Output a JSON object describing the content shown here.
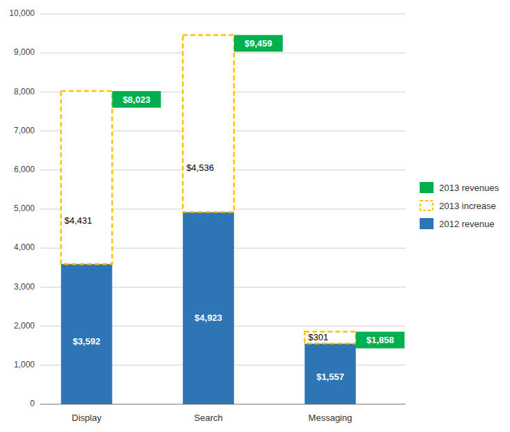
{
  "chart_data": {
    "type": "bar",
    "stacked": true,
    "categories": [
      "Display",
      "Search",
      "Messaging"
    ],
    "series": [
      {
        "name": "2012 revenue",
        "color": "#2E75B6",
        "values": [
          3592,
          4923,
          1557
        ],
        "value_labels": [
          "$3,592",
          "$4,923",
          "$1,557"
        ]
      },
      {
        "name": "2013 increase",
        "color": "#FFC000",
        "line_style": "dashed",
        "values": [
          4431,
          4536,
          301
        ],
        "value_labels": [
          "$4,431",
          "$4,536",
          "$301"
        ]
      },
      {
        "name": "2013 revenues",
        "color": "#00B050",
        "type": "label",
        "values": [
          8023,
          9459,
          1858
        ],
        "value_labels": [
          "$8,023",
          "$9,459",
          "$1,858"
        ]
      }
    ],
    "data_labels": true,
    "ylim": [
      0,
      10000
    ],
    "yticks": [
      0,
      {
        "value": 1000,
        "label": "1,000"
      },
      {
        "value": 2000,
        "label": "2,000"
      },
      {
        "value": 3000,
        "label": "3,000"
      },
      {
        "value": 4000,
        "label": "4,000"
      },
      {
        "value": 5000,
        "label": "5,000"
      },
      {
        "value": 6000,
        "label": "6,000"
      },
      {
        "value": 7000,
        "label": "7,000"
      },
      {
        "value": 8000,
        "label": "8,000"
      },
      {
        "value": 9000,
        "label": "9,000"
      },
      {
        "value": 10000,
        "label": "10,000"
      }
    ],
    "grid": true,
    "legend": "right"
  }
}
